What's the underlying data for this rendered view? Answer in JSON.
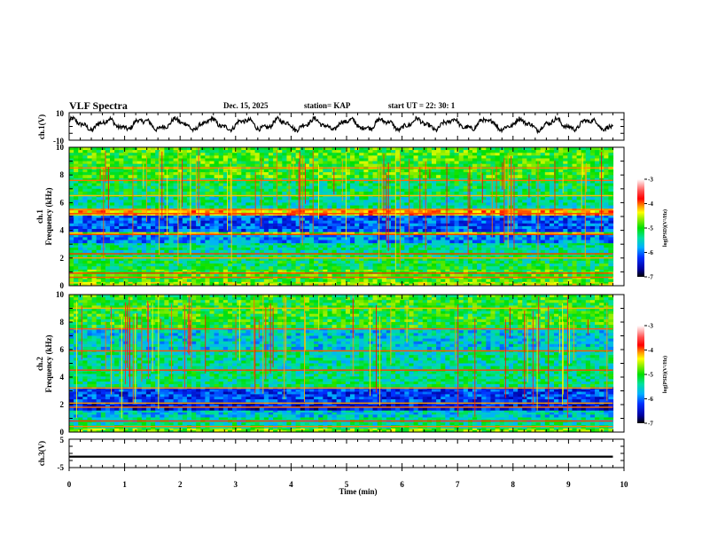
{
  "header": {
    "title": "VLF Spectra",
    "date": "Dec. 15, 2025",
    "station": "station= KAP",
    "start_time": "start  UT  =   22: 30: 1"
  },
  "chart_data": [
    {
      "type": "line",
      "name": "ch1-waveform",
      "ylabel": "ch.1(V)",
      "ylim": [
        -10,
        10
      ],
      "yticklabels": [
        "10",
        "-10"
      ],
      "xlim": [
        0,
        10
      ],
      "data_end_min": 9.8,
      "description_series": "oscillating voltage waveform, roughly -5 to 7 V"
    },
    {
      "type": "heatmap",
      "name": "ch1-spectrogram",
      "ylabel_line1": "ch.1",
      "ylabel_line2": "Frequency  (kHz)",
      "ylim": [
        0,
        10
      ],
      "yticklabels": [
        "0",
        "2",
        "4",
        "6",
        "8",
        "10"
      ],
      "xlim": [
        0,
        10
      ],
      "colorbar": {
        "label": "log(PSD)(V²/Hz)",
        "range": [
          -7,
          -3
        ],
        "ticklabels": [
          "-3",
          "-4",
          "-5",
          "-6",
          "-7"
        ]
      },
      "bands_khz": [
        {
          "from": 0.0,
          "to": 0.3,
          "level": -4.6
        },
        {
          "from": 0.3,
          "to": 1.2,
          "level": -4.9
        },
        {
          "from": 1.2,
          "to": 2.4,
          "level": -5.2
        },
        {
          "from": 2.4,
          "to": 3.1,
          "level": -5.4
        },
        {
          "from": 3.1,
          "to": 3.7,
          "level": -5.9
        },
        {
          "from": 3.7,
          "to": 3.9,
          "level": -4.6
        },
        {
          "from": 3.9,
          "to": 5.1,
          "level": -6.1
        },
        {
          "from": 5.1,
          "to": 5.6,
          "level": -4.2
        },
        {
          "from": 5.6,
          "to": 6.6,
          "level": -5.4
        },
        {
          "from": 6.6,
          "to": 7.8,
          "level": -5.2
        },
        {
          "from": 7.8,
          "to": 10.0,
          "level": -4.9
        }
      ]
    },
    {
      "type": "heatmap",
      "name": "ch2-spectrogram",
      "ylabel_line1": "ch.2",
      "ylabel_line2": "Frequency  (kHz)",
      "ylim": [
        0,
        10
      ],
      "yticklabels": [
        "0",
        "2",
        "4",
        "6",
        "8",
        "10"
      ],
      "xlim": [
        0,
        10
      ],
      "colorbar": {
        "label": "log(PSD)(V²/Hz)",
        "range": [
          -7,
          -3
        ],
        "ticklabels": [
          "-3",
          "-4",
          "-5",
          "-6",
          "-7"
        ]
      },
      "bands_khz": [
        {
          "from": 0.0,
          "to": 0.3,
          "level": -4.8
        },
        {
          "from": 0.3,
          "to": 1.1,
          "level": -5.4
        },
        {
          "from": 1.1,
          "to": 1.6,
          "level": -5.6
        },
        {
          "from": 1.6,
          "to": 2.2,
          "level": -6.4
        },
        {
          "from": 2.2,
          "to": 3.3,
          "level": -6.2
        },
        {
          "from": 3.3,
          "to": 4.6,
          "level": -5.3
        },
        {
          "from": 4.6,
          "to": 6.0,
          "level": -5.4
        },
        {
          "from": 6.0,
          "to": 7.6,
          "level": -5.6
        },
        {
          "from": 7.6,
          "to": 10.0,
          "level": -5.0
        }
      ]
    },
    {
      "type": "line",
      "name": "ch3-signal",
      "ylabel": "ch.3(V)",
      "ylim": [
        -5,
        5
      ],
      "yticklabels": [
        "5",
        "-5"
      ],
      "level_v": [
        -1.5,
        -0.8
      ],
      "xlim": [
        0,
        10
      ],
      "data_end_min": 9.8
    }
  ],
  "time_axis": {
    "xlabel": "Time  (min)",
    "ticklabels": [
      "0",
      "1",
      "2",
      "3",
      "4",
      "5",
      "6",
      "7",
      "8",
      "9",
      "10"
    ]
  }
}
